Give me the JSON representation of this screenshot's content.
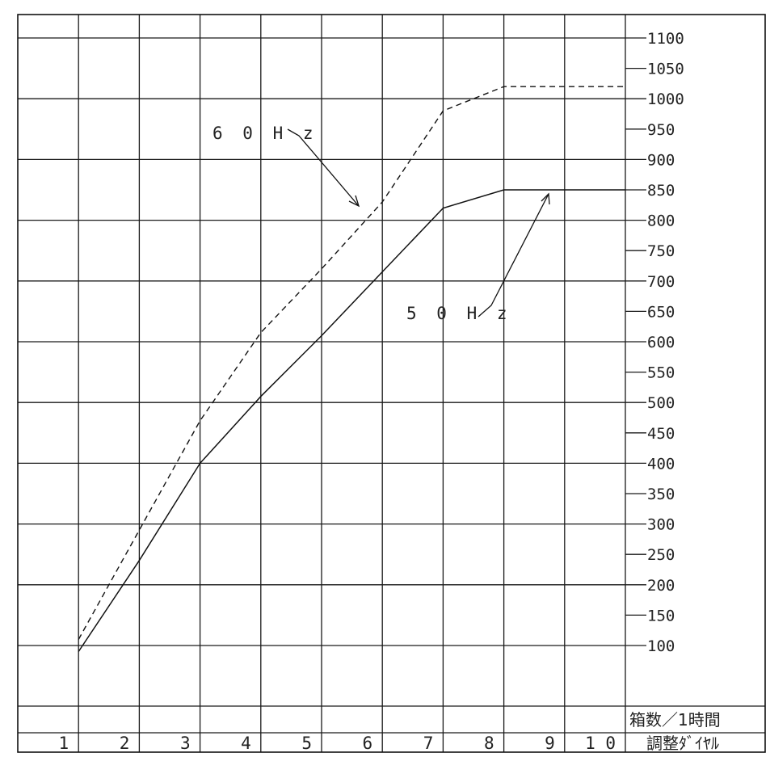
{
  "chart_data": {
    "type": "line",
    "categories": [
      "1",
      "2",
      "3",
      "4",
      "5",
      "6",
      "7",
      "8",
      "9",
      "10"
    ],
    "x": [
      1,
      2,
      3,
      4,
      5,
      6,
      7,
      8,
      9,
      10
    ],
    "series": [
      {
        "name": "6 0 H z",
        "style": "dashed",
        "x": [
          1,
          2,
          3,
          4,
          5,
          6,
          7,
          8,
          10
        ],
        "values": [
          110,
          290,
          470,
          615,
          720,
          830,
          980,
          1020,
          1020
        ]
      },
      {
        "name": "5 0 H z",
        "style": "solid",
        "x": [
          1,
          2,
          3,
          4,
          5,
          6,
          7,
          8,
          10
        ],
        "values": [
          90,
          240,
          400,
          510,
          610,
          715,
          820,
          850,
          850
        ]
      }
    ],
    "y_ticks": [
      "1100",
      "1050",
      "1000",
      "950",
      "900",
      "850",
      "800",
      "750",
      "700",
      "650",
      "600",
      "550",
      "500",
      "450",
      "400",
      "350",
      "300",
      "250",
      "200",
      "150",
      "100"
    ],
    "ylim": [
      0,
      1150
    ],
    "xlim": [
      1,
      10
    ],
    "ylabel": "箱数／1時間",
    "xlabel": "調整ﾀﾞｲﾔﾙ",
    "x_tick_labels": [
      "1",
      "2",
      "3",
      "4",
      "5",
      "6",
      "7",
      "8",
      "9",
      "1 0"
    ],
    "grid": true,
    "axis_position": "right",
    "annotations": [
      {
        "text": "6 0 H z",
        "points_to_series": "6 0 H z"
      },
      {
        "text": "5 0 H z",
        "points_to_series": "5 0 H z"
      }
    ],
    "colors": {
      "ink": "#111111",
      "background": "#ffffff"
    }
  }
}
